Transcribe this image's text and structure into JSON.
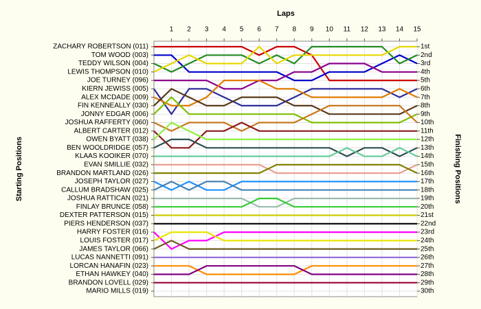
{
  "chart_data": {
    "type": "line",
    "title": "Laps",
    "y_label": "Starting Positions",
    "y2_label": "Finishing Positions",
    "x": [
      0,
      1,
      2,
      3,
      4,
      5,
      6,
      7,
      8,
      9,
      10,
      11,
      12,
      13,
      14,
      15
    ],
    "xlim": [
      0,
      15
    ],
    "xticks": [
      1,
      2,
      3,
      4,
      5,
      6,
      7,
      8,
      9,
      10,
      11,
      12,
      13,
      14,
      15
    ],
    "ylim": [
      30.65,
      0.35
    ],
    "yticks": [
      {
        "value": 1,
        "label": "1st"
      },
      {
        "value": 2,
        "label": "2nd"
      },
      {
        "value": 3,
        "label": "3rd"
      },
      {
        "value": 4,
        "label": "4th"
      },
      {
        "value": 5,
        "label": "5th"
      },
      {
        "value": 6,
        "label": "6th"
      },
      {
        "value": 7,
        "label": "7th"
      },
      {
        "value": 8,
        "label": "8th"
      },
      {
        "value": 9,
        "label": "9th"
      },
      {
        "value": 10,
        "label": "10th"
      },
      {
        "value": 11,
        "label": "11th"
      },
      {
        "value": 12,
        "label": "12th"
      },
      {
        "value": 13,
        "label": "13th"
      },
      {
        "value": 14,
        "label": "14th"
      },
      {
        "value": 15,
        "label": "15th"
      },
      {
        "value": 16,
        "label": "16th"
      },
      {
        "value": 17,
        "label": "17th"
      },
      {
        "value": 18,
        "label": "18th"
      },
      {
        "value": 19,
        "label": "19th"
      },
      {
        "value": 20,
        "label": "20th"
      },
      {
        "value": 21,
        "label": "21st"
      },
      {
        "value": 22,
        "label": "22nd"
      },
      {
        "value": 23,
        "label": "23rd"
      },
      {
        "value": 24,
        "label": "24th"
      },
      {
        "value": 25,
        "label": "25th"
      },
      {
        "value": 26,
        "label": "26th"
      },
      {
        "value": 27,
        "label": "27th"
      },
      {
        "value": 28,
        "label": "28th"
      },
      {
        "value": 29,
        "label": "29th"
      },
      {
        "value": 30,
        "label": "30th"
      }
    ],
    "grid": true,
    "series": [
      {
        "name": "ZACHARY ROBERTSON (011)",
        "color": "#cc0000",
        "values": [
          1,
          1,
          1,
          1,
          1,
          1,
          2,
          1,
          1,
          2,
          5,
          5,
          5,
          5,
          5,
          5
        ]
      },
      {
        "name": "TOM WOOD (003)",
        "color": "#0000cc",
        "values": [
          2,
          2,
          4,
          4,
          4,
          4,
          4,
          4,
          5,
          5,
          4,
          4,
          4,
          3,
          2,
          3
        ]
      },
      {
        "name": "TEDDY WILSON (004)",
        "color": "#228b22",
        "values": [
          3,
          4,
          3,
          2,
          2,
          2,
          3,
          2,
          3,
          1,
          1,
          1,
          1,
          1,
          3,
          2
        ]
      },
      {
        "name": "LEWIS THOMPSON (010)",
        "color": "#e6d800",
        "values": [
          4,
          3,
          2,
          3,
          3,
          3,
          1,
          3,
          2,
          2,
          2,
          2,
          2,
          2,
          1,
          1
        ]
      },
      {
        "name": "JOE TURNEY (096)",
        "color": "#8b008b",
        "values": [
          5,
          5,
          5,
          5,
          6,
          6,
          5,
          5,
          4,
          4,
          3,
          3,
          3,
          4,
          4,
          4
        ]
      },
      {
        "name": "KIERN JEWISS (005)",
        "color": "#2e2e9a",
        "values": [
          6,
          9,
          6,
          6,
          7,
          8,
          8,
          8,
          7,
          6,
          6,
          6,
          6,
          6,
          7,
          6
        ]
      },
      {
        "name": "ALEX MCDADE (009)",
        "color": "#e07b00",
        "values": [
          7,
          8,
          8,
          7,
          5,
          5,
          5,
          6,
          6,
          7,
          7,
          7,
          7,
          7,
          6,
          7
        ]
      },
      {
        "name": "FIN KENNEALLY (030)",
        "color": "#5a3a1a",
        "values": [
          8,
          6,
          7,
          8,
          8,
          7,
          7,
          7,
          8,
          8,
          9,
          9,
          9,
          9,
          9,
          8
        ]
      },
      {
        "name": "JONNY EDGAR (006)",
        "color": "#7fbf00",
        "values": [
          9,
          7,
          9,
          9,
          9,
          9,
          9,
          9,
          9,
          10,
          10,
          10,
          10,
          10,
          10,
          9
        ]
      },
      {
        "name": "JOSHUA RAFFERTY (060)",
        "color": "#c8781e",
        "values": [
          10,
          11,
          10,
          10,
          10,
          11,
          10,
          10,
          10,
          9,
          8,
          8,
          8,
          8,
          8,
          10
        ]
      },
      {
        "name": "ALBERT CARTER (012)",
        "color": "#8b1a1a",
        "values": [
          11,
          13,
          13,
          11,
          11,
          10,
          11,
          11,
          11,
          11,
          11,
          11,
          11,
          11,
          11,
          11
        ]
      },
      {
        "name": "OWEN BYATT (038)",
        "color": "#90ee40",
        "values": [
          12,
          10,
          11,
          12,
          12,
          12,
          12,
          12,
          12,
          12,
          12,
          12,
          12,
          12,
          12,
          12
        ]
      },
      {
        "name": "BEN WOOLDRIDGE (057)",
        "color": "#2f4f4f",
        "values": [
          13,
          12,
          12,
          13,
          13,
          13,
          13,
          13,
          13,
          13,
          13,
          14,
          13,
          13,
          14,
          13
        ]
      },
      {
        "name": "KLAAS KOOIKER (070)",
        "color": "#66cc99",
        "values": [
          14,
          14,
          14,
          14,
          14,
          14,
          14,
          14,
          14,
          14,
          14,
          13,
          14,
          14,
          13,
          14
        ]
      },
      {
        "name": "EVAN SMILLIE (032)",
        "color": "#e8a090",
        "values": [
          15,
          15,
          15,
          15,
          15,
          15,
          15,
          16,
          16,
          16,
          16,
          16,
          16,
          16,
          16,
          15
        ]
      },
      {
        "name": "BRANDON MARTLAND (026)",
        "color": "#808000",
        "values": [
          16,
          16,
          16,
          16,
          16,
          16,
          16,
          15,
          15,
          15,
          15,
          15,
          15,
          15,
          15,
          16
        ]
      },
      {
        "name": "JOSEPH TAYLOR (027)",
        "color": "#1e90ff",
        "values": [
          17,
          18,
          17,
          18,
          18,
          17,
          17,
          17,
          17,
          17,
          17,
          17,
          17,
          17,
          17,
          17
        ]
      },
      {
        "name": "CALLUM BRADSHAW (025)",
        "color": "#4682b4",
        "values": [
          18,
          17,
          18,
          17,
          17,
          18,
          18,
          18,
          18,
          18,
          18,
          18,
          18,
          18,
          18,
          18
        ]
      },
      {
        "name": "JOSHUA RATTICAN (021)",
        "color": "#9bbcb0",
        "values": [
          19,
          19,
          19,
          19,
          19,
          19,
          20,
          20,
          19,
          19,
          19,
          19,
          19,
          19,
          19,
          19
        ]
      },
      {
        "name": "FINLAY BRUNCE (058)",
        "color": "#32cd32",
        "values": [
          20,
          20,
          20,
          20,
          20,
          20,
          19,
          19,
          20,
          20,
          20,
          20,
          20,
          20,
          20,
          20
        ]
      },
      {
        "name": "DEXTER PATTERSON (015)",
        "color": "#cccc00",
        "values": [
          21,
          21,
          21,
          21,
          21,
          21,
          21,
          21,
          21,
          21,
          21,
          21,
          21,
          21,
          21,
          21
        ]
      },
      {
        "name": "PIERS HENDERSON (037)",
        "color": "#000000",
        "values": [
          22,
          22,
          22,
          22,
          22,
          22,
          22,
          22,
          22,
          22,
          22,
          22,
          22,
          22,
          22,
          22
        ]
      },
      {
        "name": "HARRY FOSTER (016)",
        "color": "#ff00ff",
        "values": [
          23,
          25,
          24,
          24,
          23,
          23,
          23,
          23,
          23,
          23,
          23,
          23,
          23,
          23,
          23,
          23
        ]
      },
      {
        "name": "LOUIS FOSTER (017)",
        "color": "#e6e600",
        "values": [
          24,
          23,
          23,
          23,
          24,
          24,
          24,
          24,
          24,
          24,
          24,
          24,
          24,
          24,
          24,
          24
        ]
      },
      {
        "name": "JAMES TAYLOR (066)",
        "color": "#6b5a1e",
        "values": [
          25,
          24,
          25,
          25,
          25,
          25,
          25,
          25,
          25,
          25,
          25,
          25,
          25,
          25,
          25,
          25
        ]
      },
      {
        "name": "LUCAS NANNETTI (091)",
        "color": "#9370db",
        "values": [
          26,
          26,
          26,
          26,
          26,
          26,
          26,
          26,
          26,
          26,
          26,
          26,
          26,
          26,
          26,
          26
        ]
      },
      {
        "name": "LORCAN HANAFIN (023)",
        "color": "#ff8c00",
        "values": [
          27,
          27,
          27,
          28,
          28,
          28,
          28,
          28,
          28,
          27,
          27,
          27,
          27,
          27,
          27,
          27
        ]
      },
      {
        "name": "ETHAN HAWKEY (040)",
        "color": "#800080",
        "values": [
          28,
          28,
          28,
          27,
          27,
          27,
          27,
          27,
          27,
          28,
          28,
          28,
          28,
          28,
          28,
          28
        ]
      },
      {
        "name": "BRANDON LOVELL (029)",
        "color": "#990033",
        "values": [
          29,
          29,
          29,
          29,
          29,
          29,
          29,
          29,
          29,
          29,
          29,
          29,
          29,
          29,
          29,
          29
        ]
      },
      {
        "name": "MARIO MILLS (019)",
        "color": "#808080",
        "values": [
          30,
          null,
          null,
          null,
          null,
          null,
          null,
          null,
          null,
          null,
          null,
          null,
          null,
          null,
          null,
          null
        ]
      }
    ]
  }
}
